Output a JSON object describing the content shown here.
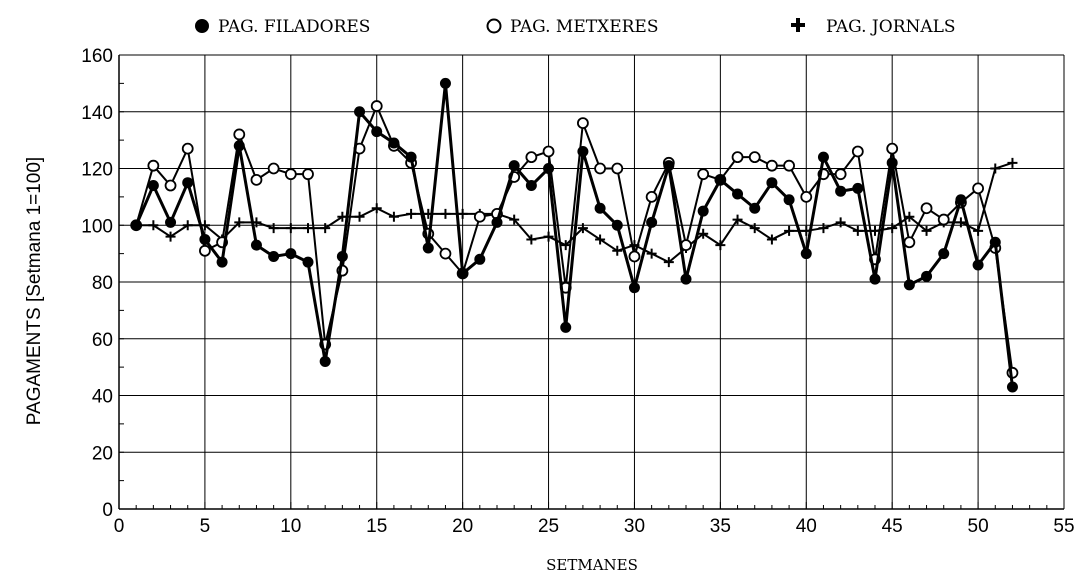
{
  "legend": [
    {
      "label": "PAG. FILADORES",
      "marker": "filled-circle"
    },
    {
      "label": "PAG. METXERES",
      "marker": "open-circle"
    },
    {
      "label": "PAG. JORNALS",
      "marker": "plus"
    }
  ],
  "colors": {
    "ink": "#000000",
    "grid": "#000000",
    "background": "#ffffff"
  },
  "chart_data": {
    "type": "line",
    "title": "",
    "xlabel": "SETMANES",
    "ylabel": "PAGAMENTS [Setmana 1=100]",
    "xlim": [
      0,
      55
    ],
    "ylim": [
      0,
      160
    ],
    "xticks": [
      0,
      5,
      10,
      15,
      20,
      25,
      30,
      35,
      40,
      45,
      50,
      55
    ],
    "yticks": [
      0,
      20,
      40,
      60,
      80,
      100,
      120,
      140,
      160
    ],
    "grid": true,
    "legend_position": "top",
    "x": [
      1,
      2,
      3,
      4,
      5,
      6,
      7,
      8,
      9,
      10,
      11,
      12,
      13,
      14,
      15,
      16,
      17,
      18,
      19,
      20,
      21,
      22,
      23,
      24,
      25,
      26,
      27,
      28,
      29,
      30,
      31,
      32,
      33,
      34,
      35,
      36,
      37,
      38,
      39,
      40,
      41,
      42,
      43,
      44,
      45,
      46,
      47,
      48,
      49,
      50,
      51,
      52
    ],
    "series": [
      {
        "name": "PAG. FILADORES",
        "marker": "filled-circle",
        "values": [
          100,
          114,
          101,
          115,
          95,
          87,
          128,
          93,
          89,
          90,
          87,
          52,
          89,
          140,
          133,
          129,
          124,
          92,
          150,
          83,
          88,
          101,
          121,
          114,
          120,
          64,
          126,
          106,
          100,
          78,
          101,
          121,
          81,
          105,
          116,
          111,
          106,
          115,
          109,
          90,
          124,
          112,
          113,
          81,
          122,
          79,
          82,
          90,
          109,
          86,
          94,
          43
        ]
      },
      {
        "name": "PAG. METXERES",
        "marker": "open-circle",
        "values": [
          100,
          121,
          114,
          127,
          91,
          94,
          132,
          116,
          120,
          118,
          118,
          58,
          84,
          127,
          142,
          128,
          122,
          97,
          90,
          83,
          103,
          104,
          117,
          124,
          126,
          78,
          136,
          120,
          120,
          89,
          110,
          122,
          93,
          118,
          116,
          124,
          124,
          121,
          121,
          110,
          118,
          118,
          126,
          88,
          127,
          94,
          106,
          102,
          108,
          113,
          92,
          48
        ]
      },
      {
        "name": "PAG. JORNALS",
        "marker": "plus",
        "values": [
          100,
          100,
          96,
          100,
          100,
          95,
          101,
          101,
          99,
          99,
          99,
          99,
          103,
          103,
          106,
          103,
          104,
          104,
          104,
          104,
          104,
          104,
          102,
          95,
          96,
          93,
          99,
          95,
          91,
          93,
          90,
          87,
          92,
          97,
          93,
          102,
          99,
          95,
          98,
          98,
          99,
          101,
          98,
          98,
          99,
          103,
          98,
          101,
          101,
          98,
          120,
          122
        ]
      }
    ]
  }
}
